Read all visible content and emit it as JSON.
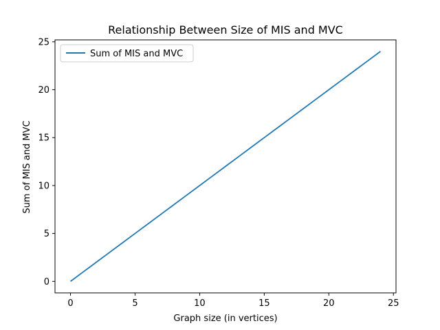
{
  "chart_data": {
    "type": "line",
    "title": "Relationship Between Size of MIS and MVC",
    "xlabel": "Graph size (in vertices)",
    "ylabel": "Sum of MIS and MVC",
    "xlim": [
      -1.2,
      25.2
    ],
    "ylim": [
      -1.2,
      25.2
    ],
    "xticks": [
      0,
      5,
      10,
      15,
      20,
      25
    ],
    "yticks": [
      0,
      5,
      10,
      15,
      20,
      25
    ],
    "grid": false,
    "legend_position": "upper-left",
    "series": [
      {
        "name": "Sum of MIS and MVC",
        "color": "#1f77b4",
        "x": [
          0,
          1,
          2,
          3,
          4,
          5,
          6,
          7,
          8,
          9,
          10,
          11,
          12,
          13,
          14,
          15,
          16,
          17,
          18,
          19,
          20,
          21,
          22,
          23,
          24
        ],
        "y": [
          0,
          1,
          2,
          3,
          4,
          5,
          6,
          7,
          8,
          9,
          10,
          11,
          12,
          13,
          14,
          15,
          16,
          17,
          18,
          19,
          20,
          21,
          22,
          23,
          24
        ]
      }
    ]
  }
}
